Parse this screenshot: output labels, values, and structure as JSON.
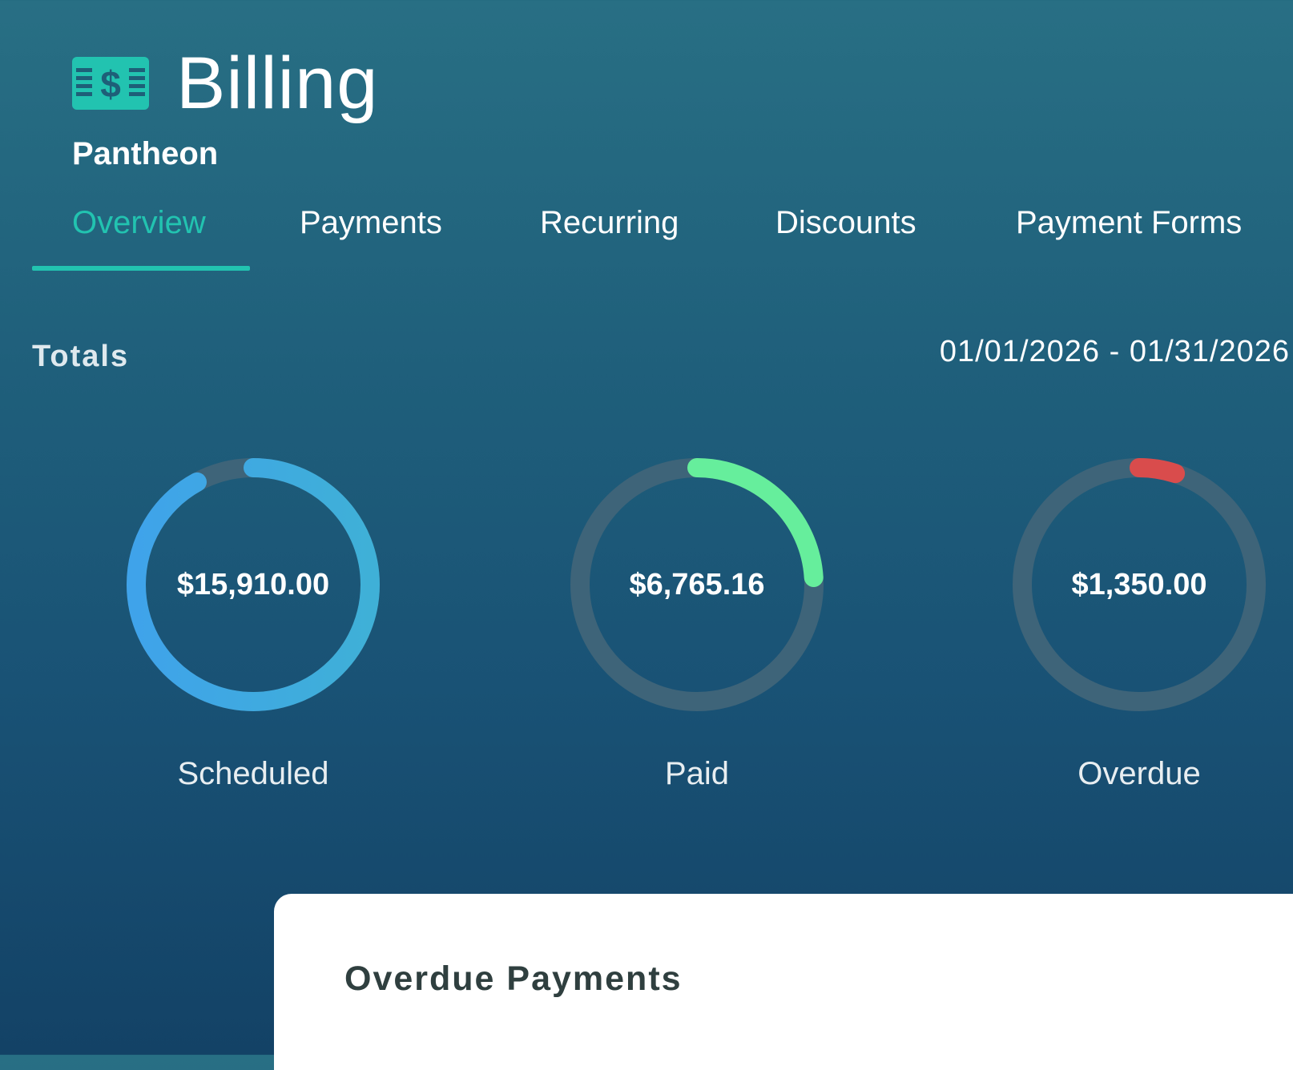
{
  "header": {
    "icon": "money-bill-icon",
    "title": "Billing",
    "organization": "Pantheon"
  },
  "tabs": [
    {
      "label": "Overview",
      "active": true
    },
    {
      "label": "Payments",
      "active": false
    },
    {
      "label": "Recurring",
      "active": false
    },
    {
      "label": "Discounts",
      "active": false
    },
    {
      "label": "Payment Forms",
      "active": false
    }
  ],
  "totals": {
    "title": "Totals",
    "date_range": "01/01/2026 - 01/31/2026",
    "items": [
      {
        "label": "Scheduled",
        "value": "$15,910.00",
        "progress": 0.92,
        "color": "#3fa3ea",
        "color_end": "#3fb0d7"
      },
      {
        "label": "Paid",
        "value": "$6,765.16",
        "progress": 0.24,
        "color": "#66ee9c",
        "color_end": "#66ee9c"
      },
      {
        "label": "Overdue",
        "value": "$1,350.00",
        "progress": 0.05,
        "color": "#d94c4c",
        "color_end": "#d94c4c"
      }
    ]
  },
  "colors": {
    "accent": "#22c3b0",
    "track": "#3e6479"
  },
  "overdue_section": {
    "title": "Overdue Payments"
  }
}
